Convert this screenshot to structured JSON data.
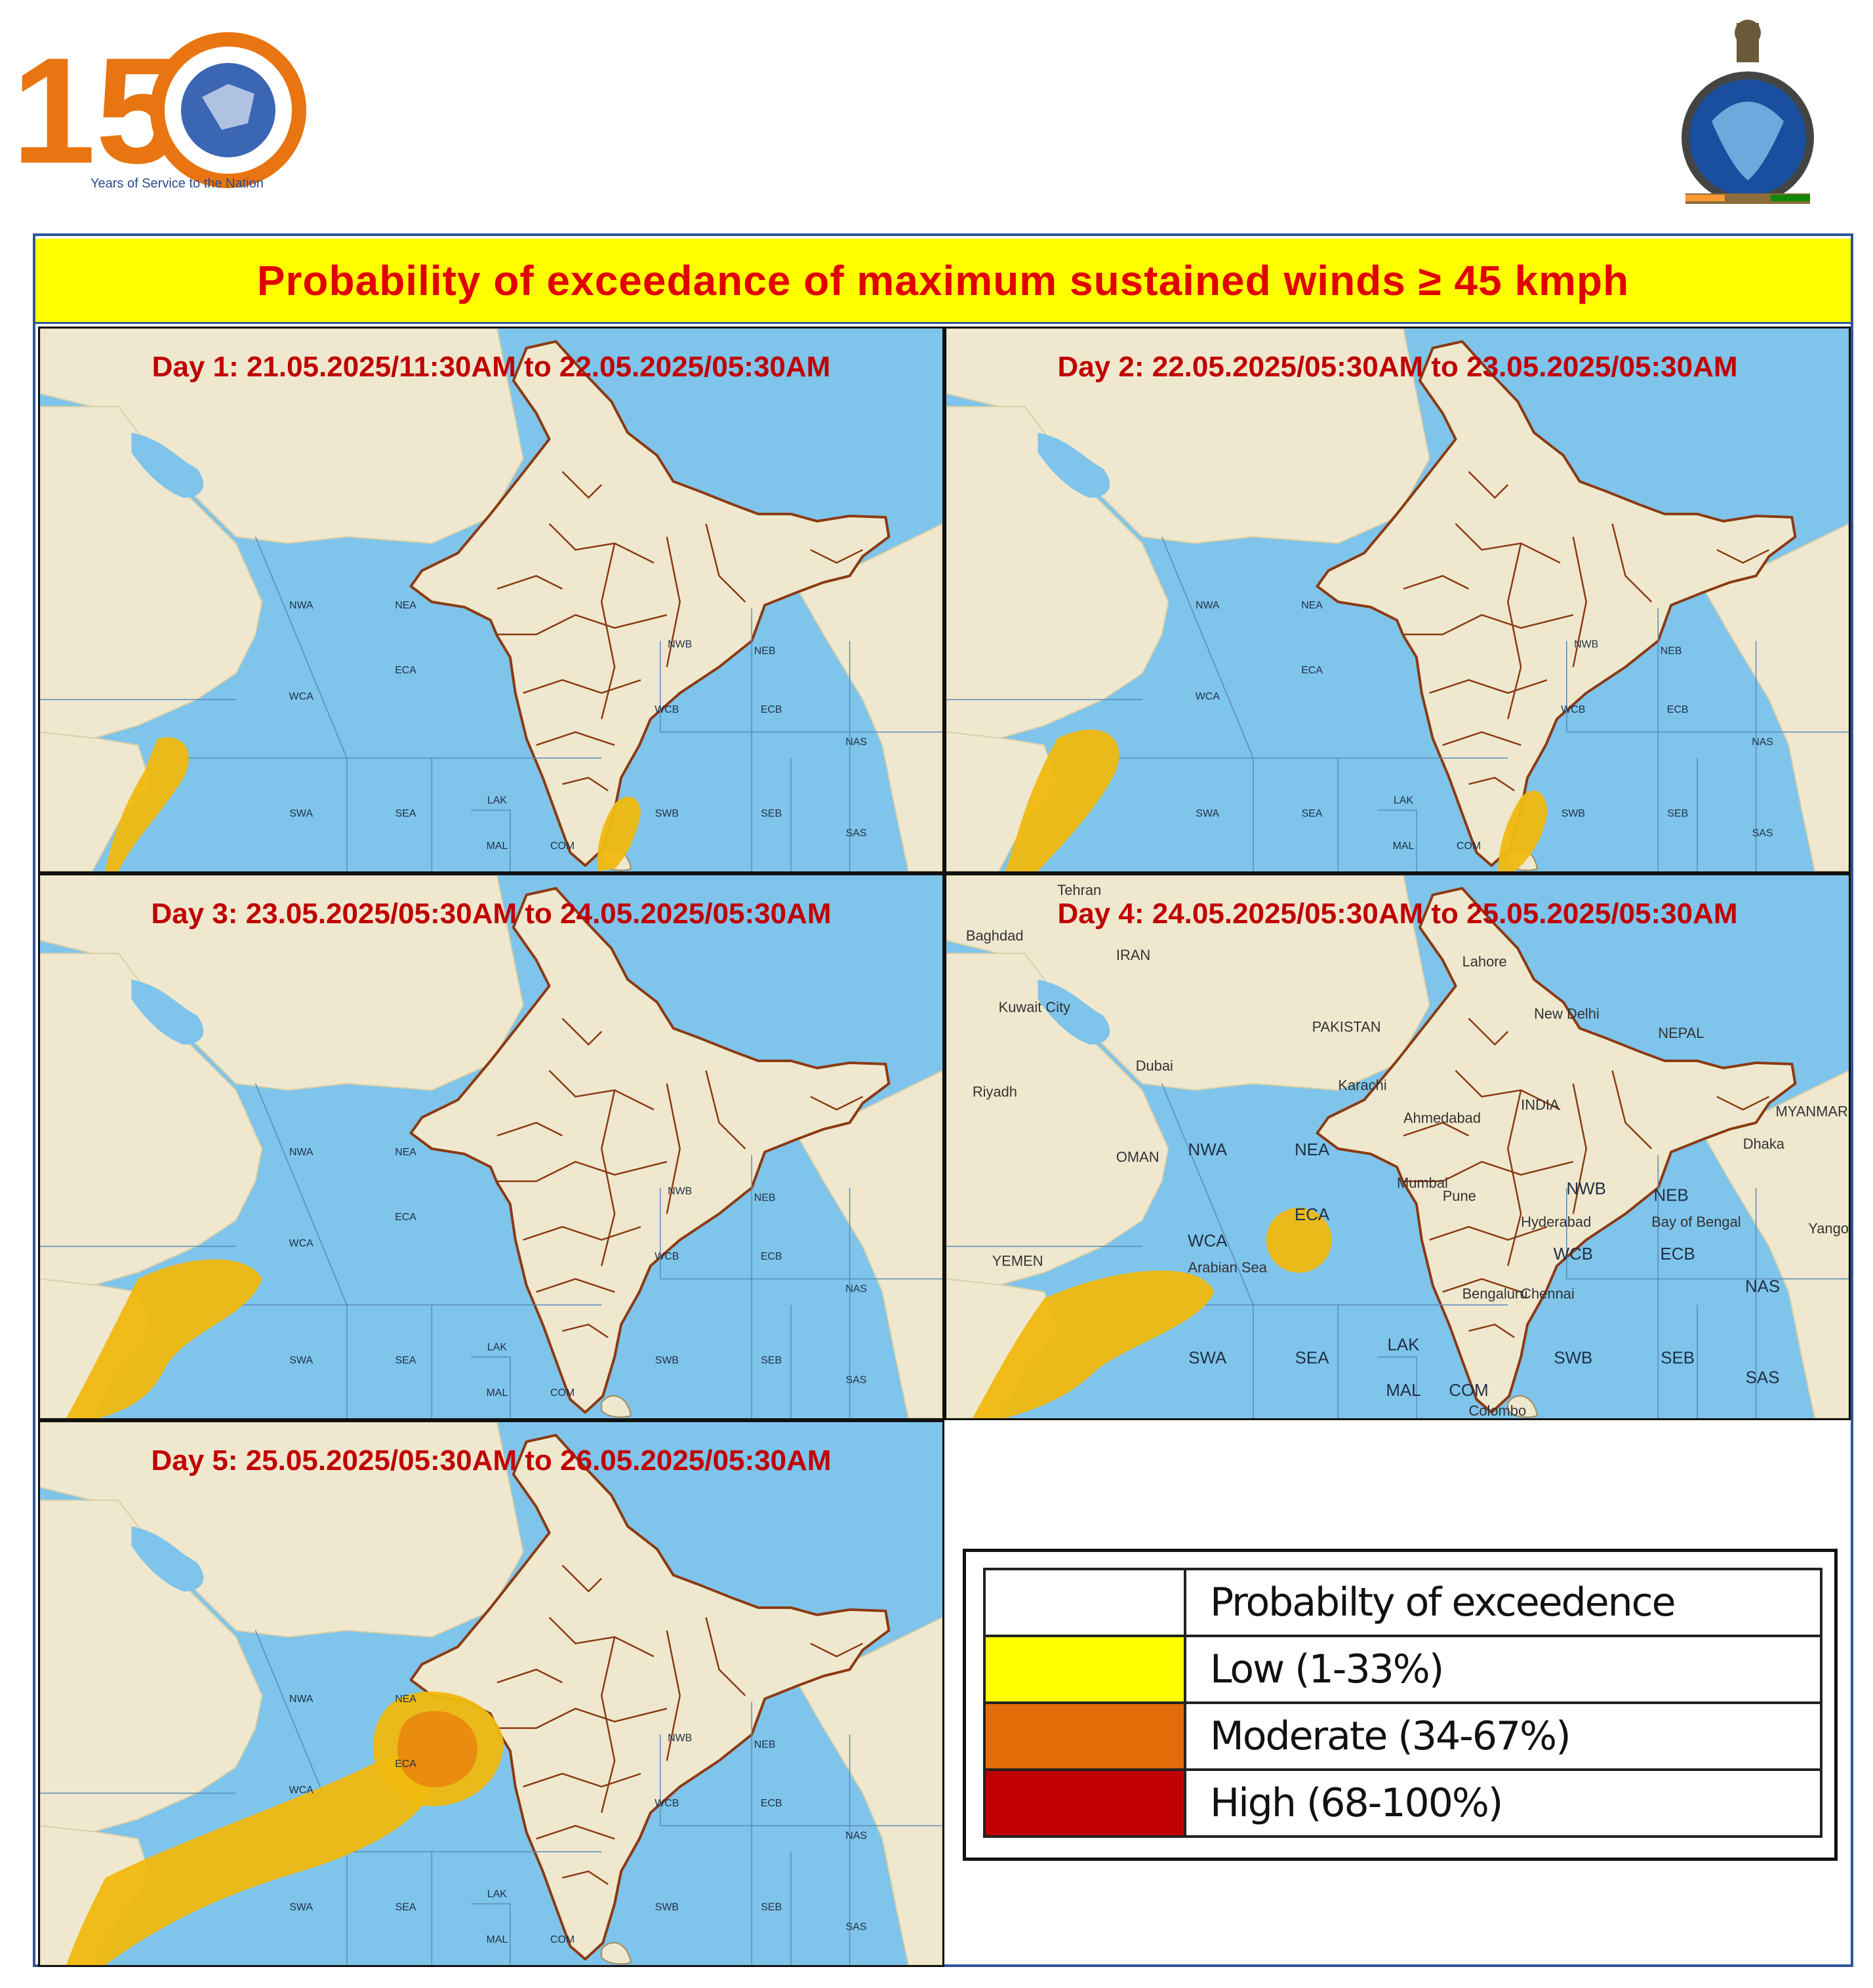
{
  "header": {
    "anniversary_logo": {
      "icon": "imd-150-years-logo",
      "number": "150",
      "tagline": "Years of Service to the Nation"
    },
    "emblem": {
      "icon": "imd-emblem"
    }
  },
  "title": "Probability  of exceedance of maximum  sustained  winds ≥ 45 kmph",
  "panels": [
    {
      "label": "Day 1:  21.05.2025/11:30AM to 22.05.2025/05:30AM",
      "areas": [
        {
          "level": "low",
          "region": "Gulf of Aden / Somalia coast"
        },
        {
          "level": "low",
          "region": "Sri Lanka / Comorin"
        }
      ]
    },
    {
      "label": "Day 2:  22.05.2025/05:30AM to 23.05.2025/05:30AM",
      "areas": [
        {
          "level": "low",
          "region": "Gulf of Aden / Somalia coast"
        },
        {
          "level": "low",
          "region": "Sri Lanka / Comorin"
        }
      ]
    },
    {
      "label": "Day 3:  23.05.2025/05:30AM to 24.05.2025/05:30AM",
      "areas": [
        {
          "level": "low",
          "region": "Gulf of Aden / Somalia coast"
        }
      ]
    },
    {
      "label": "Day 4:  24.05.2025/05:30AM to 25.05.2025/05:30AM",
      "areas": [
        {
          "level": "low",
          "region": "Somalia coast / SWA"
        },
        {
          "level": "low",
          "region": "ECA"
        }
      ],
      "place_labels": [
        "Tehran",
        "Baghdad",
        "IRAN",
        "Kuwait City",
        "PAKISTAN",
        "Riyadh",
        "Dubai",
        "Karachi",
        "New Delhi",
        "NEPAL",
        "Ahmedabad",
        "INDIA",
        "OMAN",
        "Mumbai",
        "Pune",
        "Hyderabad",
        "YEMEN",
        "Arabian Sea",
        "Bengaluru",
        "Chennai",
        "Bay of Bengal",
        "Dhaka",
        "MYANMAR (BURMA)",
        "Yangon",
        "Colombo",
        "Lahore"
      ]
    },
    {
      "label": "Day 5:  25.05.2025/05:30AM to 26.05.2025/05:30AM",
      "areas": [
        {
          "level": "low",
          "region": "SWA / WCA"
        },
        {
          "level": "moderate",
          "region": "ECA"
        }
      ]
    }
  ],
  "sea_areas": [
    "NWA",
    "NEA",
    "WCA",
    "ECA",
    "SWA",
    "SEA",
    "LAK",
    "MAL",
    "COM",
    "NWB",
    "NEB",
    "WCB",
    "ECB",
    "SWB",
    "SEB",
    "NAS",
    "SAS"
  ],
  "legend": {
    "header": "Probabilty of exceedence",
    "items": [
      {
        "label": "Low (1-33%)",
        "color": "#ffff00"
      },
      {
        "label": "Moderate (34-67%)",
        "color": "#e36c09"
      },
      {
        "label": "High (68-100%)",
        "color": "#c00000"
      }
    ]
  },
  "colors": {
    "title_bg": "#ffff00",
    "title_text": "#e00000",
    "panel_label": "#c00000",
    "sea": "#7fc4ea",
    "land": "#efe8cf",
    "boundary": "#8b3a12",
    "probability_fill": "#f0b90f",
    "moderate_fill": "#e9890f"
  }
}
